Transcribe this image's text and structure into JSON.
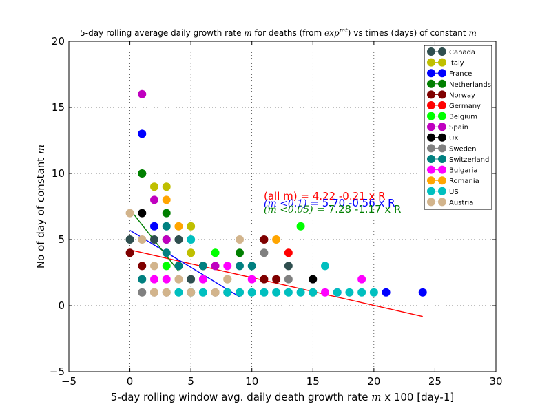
{
  "chart_data": {
    "type": "scatter",
    "title": {
      "pre": "5-day rolling average daily growth rate ",
      "m": "m",
      "mid": " for deaths (from ",
      "exp": "exp",
      "sup": "mt",
      "post": ") vs times (days) of constant ",
      "m2": "m"
    },
    "xlabel": {
      "pre": "5-day rolling window avg. daily death growth rate ",
      "m": "m",
      "post": " x 100 [day-1]"
    },
    "ylabel": {
      "pre": "No of day of constant ",
      "m": "m"
    },
    "xlim": [
      -5,
      30
    ],
    "ylim": [
      -5,
      20
    ],
    "xticks": [
      -5,
      0,
      5,
      10,
      15,
      20,
      25,
      30
    ],
    "yticks": [
      -5,
      0,
      5,
      10,
      15,
      20
    ],
    "grid": true,
    "legend_position": "top-right",
    "series": [
      {
        "name": "Canada",
        "color": "#2f4f4f",
        "points": [
          [
            0,
            5
          ],
          [
            2,
            5
          ],
          [
            3,
            5
          ],
          [
            4,
            3
          ],
          [
            4,
            5
          ],
          [
            5,
            2
          ],
          [
            8,
            1
          ],
          [
            13,
            3
          ]
        ]
      },
      {
        "name": "Italy",
        "color": "#bfbf00",
        "points": [
          [
            2,
            9
          ],
          [
            3,
            9
          ],
          [
            4,
            3
          ],
          [
            5,
            4
          ],
          [
            5,
            6
          ],
          [
            8,
            2
          ]
        ]
      },
      {
        "name": "France",
        "color": "#0000ff",
        "points": [
          [
            1,
            13
          ],
          [
            2,
            6
          ],
          [
            21,
            1
          ],
          [
            24,
            1
          ]
        ]
      },
      {
        "name": "Netherlands",
        "color": "#007f00",
        "points": [
          [
            1,
            10
          ],
          [
            3,
            7
          ],
          [
            9,
            4
          ]
        ]
      },
      {
        "name": "Norway",
        "color": "#7f0000",
        "points": [
          [
            0,
            4
          ],
          [
            1,
            3
          ],
          [
            6,
            3
          ],
          [
            11,
            5
          ],
          [
            11,
            2
          ],
          [
            12,
            2
          ]
        ]
      },
      {
        "name": "Germany",
        "color": "#ff0000",
        "points": [
          [
            13,
            4
          ]
        ]
      },
      {
        "name": "Belgium",
        "color": "#00ff00",
        "points": [
          [
            3,
            3
          ],
          [
            7,
            4
          ],
          [
            14,
            6
          ]
        ]
      },
      {
        "name": "Spain",
        "color": "#bf00bf",
        "points": [
          [
            1,
            16
          ],
          [
            2,
            8
          ],
          [
            3,
            5
          ],
          [
            7,
            3
          ]
        ]
      },
      {
        "name": "UK",
        "color": "#000000",
        "points": [
          [
            1,
            7
          ],
          [
            15,
            2
          ]
        ]
      },
      {
        "name": "Sweden",
        "color": "#808080",
        "points": [
          [
            1,
            1
          ],
          [
            2,
            1
          ],
          [
            3,
            1
          ],
          [
            5,
            1
          ],
          [
            7,
            1
          ],
          [
            9,
            1
          ],
          [
            11,
            4
          ],
          [
            13,
            2
          ]
        ]
      },
      {
        "name": "Switzerland",
        "color": "#008080",
        "points": [
          [
            1,
            2
          ],
          [
            3,
            6
          ],
          [
            3,
            4
          ],
          [
            4,
            3
          ],
          [
            6,
            3
          ],
          [
            9,
            3
          ],
          [
            10,
            3
          ]
        ]
      },
      {
        "name": "Bulgaria",
        "color": "#ff00ff",
        "points": [
          [
            2,
            2
          ],
          [
            3,
            2
          ],
          [
            6,
            2
          ],
          [
            8,
            3
          ],
          [
            10,
            2
          ],
          [
            16,
            1
          ],
          [
            17,
            1
          ],
          [
            19,
            2
          ]
        ]
      },
      {
        "name": "Romania",
        "color": "#ffa500",
        "points": [
          [
            3,
            8
          ],
          [
            4,
            6
          ],
          [
            12,
            5
          ],
          [
            15,
            1
          ]
        ]
      },
      {
        "name": "US",
        "color": "#00bfbf",
        "points": [
          [
            4,
            1
          ],
          [
            5,
            1
          ],
          [
            5,
            5
          ],
          [
            6,
            1
          ],
          [
            8,
            1
          ],
          [
            9,
            1
          ],
          [
            10,
            1
          ],
          [
            11,
            1
          ],
          [
            12,
            1
          ],
          [
            13,
            1
          ],
          [
            14,
            1
          ],
          [
            15,
            1
          ],
          [
            16,
            3
          ],
          [
            17,
            1
          ],
          [
            18,
            1
          ],
          [
            19,
            1
          ],
          [
            20,
            1
          ]
        ]
      },
      {
        "name": "Austria",
        "color": "#d2b48c",
        "points": [
          [
            0,
            7
          ],
          [
            1,
            5
          ],
          [
            2,
            3
          ],
          [
            2,
            1
          ],
          [
            3,
            1
          ],
          [
            4,
            2
          ],
          [
            5,
            1
          ],
          [
            7,
            1
          ],
          [
            8,
            2
          ],
          [
            9,
            5
          ]
        ]
      }
    ],
    "fit_lines": [
      {
        "color": "#ff0000",
        "x": [
          0,
          24
        ],
        "label_pre": "(all m) = 4.22 -0.21 x R",
        "label_math": "",
        "label_post": ""
      },
      {
        "color": "#0000ff",
        "x": [
          0,
          9
        ],
        "label_pre": "",
        "label_math": "(m <0.1)",
        "label_post": " = 5.70 -0.56 x R"
      },
      {
        "color": "#007f00",
        "x": [
          0,
          4
        ],
        "label_pre": "",
        "label_math": "(m <0.05)",
        "label_post": " = 7.28 -1.17 x R"
      }
    ],
    "fit_coefficients": [
      [
        4.22,
        -0.21
      ],
      [
        5.7,
        -0.56
      ],
      [
        7.28,
        -1.17
      ]
    ]
  }
}
